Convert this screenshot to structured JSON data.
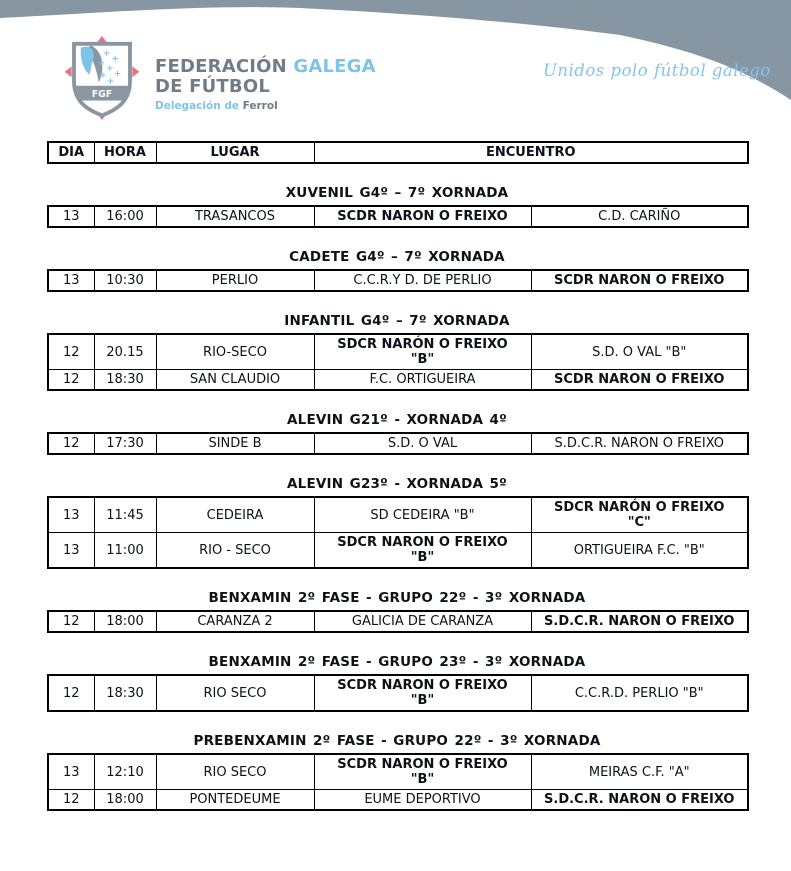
{
  "banner": {
    "slogan": "Unidos polo fútbol galego"
  },
  "logo": {
    "shield_text": "FGF",
    "org_word_1": "FEDERACIÓN",
    "org_word_2": "GALEGA",
    "org_line_2": "DE FÚTBOL",
    "delegation_prefix": "Delegación de",
    "delegation_city": "Ferrol"
  },
  "table_header": {
    "dia": "DIA",
    "hora": "HORA",
    "lugar": "LUGAR",
    "encuentro": "ENCUENTRO"
  },
  "sections": [
    {
      "title": "XUVENIL G4º – 7º XORNADA",
      "rows": [
        {
          "dia": "13",
          "hora": "16:00",
          "lugar": "TRASANCOS",
          "home": "SCDR NARON O FREIXO",
          "home_bold": true,
          "away": "C.D. CARIÑO",
          "away_bold": false
        }
      ]
    },
    {
      "title": "CADETE G4º – 7º XORNADA",
      "rows": [
        {
          "dia": "13",
          "hora": "10:30",
          "lugar": "PERLIO",
          "home": "C.C.R.Y D. DE PERLIO",
          "home_bold": false,
          "away": "SCDR NARON O FREIXO",
          "away_bold": true
        }
      ]
    },
    {
      "title": "INFANTIL G4º – 7º XORNADA",
      "rows": [
        {
          "dia": "12",
          "hora": "20.15",
          "lugar": "RIO-SECO",
          "home": "SDCR NARÓN O FREIXO\n\"B\"",
          "home_bold": true,
          "away": "S.D. O VAL \"B\"",
          "away_bold": false
        },
        {
          "dia": "12",
          "hora": "18:30",
          "lugar": "SAN CLAUDIO",
          "home": "F.C. ORTIGUEIRA",
          "home_bold": false,
          "away": "SCDR NARON O FREIXO",
          "away_bold": true
        }
      ]
    },
    {
      "title": "ALEVIN G21º - XORNADA 4º",
      "rows": [
        {
          "dia": "12",
          "hora": "17:30",
          "lugar": "SINDE B",
          "home": "S.D. O VAL",
          "home_bold": false,
          "away": "S.D.C.R. NARON O FREIXO",
          "away_bold": false
        }
      ]
    },
    {
      "title": "ALEVIN G23º - XORNADA 5º",
      "rows": [
        {
          "dia": "13",
          "hora": "11:45",
          "lugar": "CEDEIRA",
          "home": "SD CEDEIRA \"B\"",
          "home_bold": false,
          "away": "SDCR NARÓN O FREIXO\n\"C\"",
          "away_bold": true
        },
        {
          "dia": "13",
          "hora": "11:00",
          "lugar": "RIO - SECO",
          "home": "SDCR NARON O FREIXO\n\"B\"",
          "home_bold": true,
          "away": "ORTIGUEIRA F.C. \"B\"",
          "away_bold": false
        }
      ]
    },
    {
      "title": "BENXAMIN 2º FASE - GRUPO 22º - 3º XORNADA",
      "rows": [
        {
          "dia": "12",
          "hora": "18:00",
          "lugar": "CARANZA 2",
          "home": "GALICIA DE CARANZA",
          "home_bold": false,
          "away": "S.D.C.R. NARON O FREIXO",
          "away_bold": true
        }
      ]
    },
    {
      "title": "BENXAMIN 2º FASE - GRUPO 23º - 3º XORNADA",
      "rows": [
        {
          "dia": "12",
          "hora": "18:30",
          "lugar": "RIO SECO",
          "home": "SCDR NARON O FREIXO\n\"B\"",
          "home_bold": true,
          "away": "C.C.R.D. PERLIO \"B\"",
          "away_bold": false
        }
      ]
    },
    {
      "title": "PREBENXAMIN 2º FASE - GRUPO 22º - 3º XORNADA",
      "rows": [
        {
          "dia": "13",
          "hora": "12:10",
          "lugar": "RIO SECO",
          "home": "SCDR NARON O FREIXO\n\"B\"",
          "home_bold": true,
          "away": "MEIRAS C.F. \"A\"",
          "away_bold": false
        },
        {
          "dia": "12",
          "hora": "18:00",
          "lugar": "PONTEDEUME",
          "home": "EUME DEPORTIVO",
          "home_bold": false,
          "away": "S.D.C.R. NARON O FREIXO",
          "away_bold": true
        }
      ]
    }
  ],
  "colors": {
    "banner_gray": "#8796a3",
    "accent_blue": "#7ec3e8",
    "logo_gray": "#6f7d89",
    "logo_red": "#ec7280",
    "text_black": "#0d1218",
    "border_black": "#000000"
  }
}
